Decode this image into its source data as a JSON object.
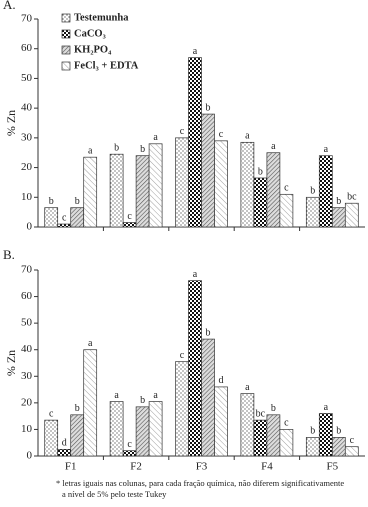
{
  "chart_data": [
    {
      "type": "bar",
      "panel_label": "A.",
      "y_label": "% Zn",
      "legend": "upper-left",
      "categories": [
        null,
        null,
        null,
        null,
        null
      ],
      "ylim": [
        0,
        70
      ],
      "yticks": [
        0,
        10,
        20,
        30,
        40,
        50,
        60,
        70
      ],
      "series": [
        {
          "name": "Testemunha",
          "pattern": "dots",
          "values": [
            6.5,
            24.5,
            30,
            28.5,
            10
          ],
          "letters": [
            "b",
            "b",
            "c",
            "a",
            "b"
          ]
        },
        {
          "name": "CaCO₃",
          "pattern": "checker",
          "values": [
            1,
            1.5,
            57,
            16.5,
            24
          ],
          "letters": [
            "c",
            "c",
            "a",
            "b",
            "a"
          ]
        },
        {
          "name": "KH₂PO₄",
          "pattern": "hatch",
          "values": [
            6.5,
            24,
            38,
            25,
            6.5
          ],
          "letters": [
            "b",
            "b",
            "b",
            "a",
            "b"
          ]
        },
        {
          "name": "FeCl₃ + EDTA",
          "pattern": "hatch-light",
          "values": [
            23.5,
            28,
            29,
            11,
            8
          ],
          "letters": [
            "a",
            "a",
            "c",
            "c",
            "bc"
          ]
        }
      ]
    },
    {
      "type": "bar",
      "panel_label": "B.",
      "y_label": "% Zn",
      "categories": [
        "F1",
        "F2",
        "F3",
        "F4",
        "F5"
      ],
      "ylim": [
        0,
        70
      ],
      "yticks": [
        0,
        10,
        20,
        30,
        40,
        50,
        60,
        70
      ],
      "series": [
        {
          "pattern": "dots",
          "values": [
            13.5,
            20.5,
            35.5,
            23.5,
            7
          ],
          "letters": [
            "c",
            "a",
            "c",
            "a",
            "b"
          ]
        },
        {
          "pattern": "checker",
          "values": [
            2.5,
            2,
            66,
            13.5,
            16
          ],
          "letters": [
            "d",
            "c",
            "a",
            "bc",
            "a"
          ]
        },
        {
          "pattern": "hatch",
          "values": [
            15.5,
            18.5,
            44,
            15.5,
            7
          ],
          "letters": [
            "b",
            "b",
            "b",
            "b",
            "b"
          ]
        },
        {
          "pattern": "hatch-light",
          "values": [
            40,
            20.5,
            26,
            10,
            3.5
          ],
          "letters": [
            "a",
            "a",
            "d",
            "c",
            "c"
          ]
        }
      ],
      "footnote": [
        "* letras iguais nas colunas, para cada fração química, não diferem significativamente",
        "a nível de 5% pelo teste Tukey"
      ]
    }
  ]
}
